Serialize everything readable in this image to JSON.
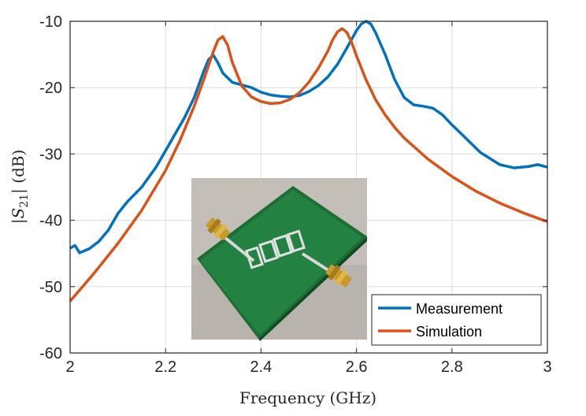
{
  "chart_data": {
    "type": "line",
    "xlabel": "Frequency (GHz)",
    "ylabel": "|S21| (dB)",
    "ylabel_main": "|S",
    "ylabel_sub": "21",
    "ylabel_unit": "| (dB)",
    "xlim": [
      2.0,
      3.0
    ],
    "ylim": [
      -60,
      -10
    ],
    "xticks": [
      2,
      2.2,
      2.4,
      2.6,
      2.8,
      3
    ],
    "xtick_labels": [
      "2",
      "2.2",
      "2.4",
      "2.6",
      "2.8",
      "3"
    ],
    "yticks": [
      -60,
      -50,
      -40,
      -30,
      -20,
      -10
    ],
    "ytick_labels": [
      "-60",
      "-50",
      "-40",
      "-30",
      "-20",
      "-10"
    ],
    "grid": true,
    "legend_position": "bottom-right",
    "series": [
      {
        "name": "Measurement",
        "color": "#0072BD",
        "x": [
          2.0,
          2.01,
          2.02,
          2.04,
          2.06,
          2.08,
          2.1,
          2.12,
          2.15,
          2.18,
          2.2,
          2.22,
          2.24,
          2.26,
          2.28,
          2.29,
          2.3,
          2.31,
          2.32,
          2.34,
          2.36,
          2.38,
          2.4,
          2.42,
          2.44,
          2.46,
          2.48,
          2.5,
          2.52,
          2.54,
          2.56,
          2.58,
          2.6,
          2.61,
          2.62,
          2.63,
          2.64,
          2.66,
          2.68,
          2.7,
          2.72,
          2.74,
          2.76,
          2.78,
          2.8,
          2.83,
          2.86,
          2.9,
          2.93,
          2.96,
          2.98,
          3.0
        ],
        "y": [
          -44.2,
          -43.8,
          -44.9,
          -44.3,
          -43.2,
          -41.5,
          -39.0,
          -37.2,
          -35.0,
          -32.0,
          -29.5,
          -27.0,
          -24.5,
          -21.5,
          -17.5,
          -15.8,
          -15.1,
          -16.3,
          -17.8,
          -19.2,
          -19.6,
          -20.0,
          -20.7,
          -21.1,
          -21.3,
          -21.4,
          -21.2,
          -20.6,
          -19.7,
          -18.4,
          -16.5,
          -14.0,
          -11.4,
          -10.4,
          -10.0,
          -10.4,
          -11.7,
          -15.0,
          -18.8,
          -21.5,
          -22.6,
          -22.8,
          -23.1,
          -24.1,
          -25.6,
          -27.7,
          -29.8,
          -31.6,
          -32.1,
          -31.9,
          -31.6,
          -32.0
        ]
      },
      {
        "name": "Simulation",
        "color": "#D95319",
        "x": [
          2.0,
          2.05,
          2.1,
          2.15,
          2.2,
          2.23,
          2.26,
          2.28,
          2.3,
          2.31,
          2.32,
          2.33,
          2.34,
          2.36,
          2.38,
          2.4,
          2.42,
          2.44,
          2.46,
          2.48,
          2.5,
          2.52,
          2.54,
          2.55,
          2.56,
          2.57,
          2.58,
          2.59,
          2.6,
          2.62,
          2.64,
          2.66,
          2.68,
          2.7,
          2.75,
          2.8,
          2.85,
          2.9,
          2.95,
          3.0
        ],
        "y": [
          -52.2,
          -48.0,
          -43.5,
          -38.5,
          -32.5,
          -28.0,
          -22.8,
          -18.8,
          -14.6,
          -12.8,
          -12.3,
          -13.6,
          -16.2,
          -19.8,
          -21.4,
          -22.1,
          -22.4,
          -22.3,
          -21.8,
          -20.8,
          -19.2,
          -17.1,
          -14.5,
          -12.8,
          -11.6,
          -11.1,
          -11.7,
          -13.2,
          -15.2,
          -18.8,
          -21.8,
          -24.1,
          -26.0,
          -27.6,
          -30.8,
          -33.4,
          -35.6,
          -37.4,
          -38.9,
          -40.2
        ]
      }
    ]
  }
}
